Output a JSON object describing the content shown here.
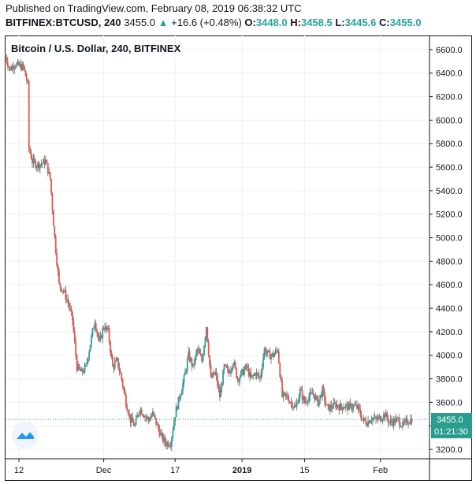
{
  "header": {
    "published": "Published on TradingView.com, February 08, 2019 06:38:32 UTC",
    "symbol": "BITFINEX:BTCUSD, 240",
    "last": "3455.0",
    "change_arrow": "▲",
    "change": "+16.6 (+0.48%)",
    "open_label": "O:",
    "open": "3448.0",
    "high_label": "H:",
    "high": "3458.5",
    "low_label": "L:",
    "low": "3445.6",
    "close_label": "C:",
    "close": "3455.0"
  },
  "price_tag": {
    "price": "3455.0",
    "countdown": "01:21:30"
  },
  "colors": {
    "up": "#26a69a",
    "down": "#ef5350",
    "candle": "#6b6b6b",
    "tag": "#2a9d8f"
  },
  "chart_data": {
    "type": "candlestick",
    "title": "Bitcoin / U.S. Dollar, 240, BITFINEX",
    "xlabel": "",
    "ylabel": "",
    "ylim": [
      3120,
      6700
    ],
    "y_ticks": [
      3200,
      3400,
      3600,
      3800,
      4000,
      4200,
      4400,
      4600,
      4800,
      5000,
      5200,
      5400,
      5600,
      5800,
      6000,
      6200,
      6400,
      6600
    ],
    "x_ticks": [
      {
        "label": "12",
        "date": "2018-11-12"
      },
      {
        "label": "Dec",
        "date": "2018-12-01"
      },
      {
        "label": "17",
        "date": "2018-12-17"
      },
      {
        "label": "2019",
        "date": "2019-01-01"
      },
      {
        "label": "15",
        "date": "2019-01-15"
      },
      {
        "label": "Feb",
        "date": "2019-02-01"
      }
    ],
    "x_range": [
      "2018-11-09",
      "2019-02-12"
    ],
    "last_price": 3455.0,
    "grid": true,
    "close_path": [
      [
        "2018-11-09",
        6540
      ],
      [
        "2018-11-10",
        6430
      ],
      [
        "2018-11-11",
        6480
      ],
      [
        "2018-11-12",
        6460
      ],
      [
        "2018-11-13",
        6450
      ],
      [
        "2018-11-14",
        6300
      ],
      [
        "2018-11-14",
        5800
      ],
      [
        "2018-11-15",
        5650
      ],
      [
        "2018-11-16",
        5620
      ],
      [
        "2018-11-17",
        5630
      ],
      [
        "2018-11-18",
        5650
      ],
      [
        "2018-11-19",
        5500
      ],
      [
        "2018-11-20",
        5000
      ],
      [
        "2018-11-21",
        4600
      ],
      [
        "2018-11-22",
        4550
      ],
      [
        "2018-11-23",
        4450
      ],
      [
        "2018-11-24",
        4300
      ],
      [
        "2018-11-25",
        3900
      ],
      [
        "2018-11-26",
        3850
      ],
      [
        "2018-11-27",
        3900
      ],
      [
        "2018-11-28",
        4100
      ],
      [
        "2018-11-29",
        4300
      ],
      [
        "2018-11-30",
        4100
      ],
      [
        "2018-12-01",
        4250
      ],
      [
        "2018-12-02",
        4200
      ],
      [
        "2018-12-03",
        3900
      ],
      [
        "2018-12-04",
        3950
      ],
      [
        "2018-12-05",
        3800
      ],
      [
        "2018-12-06",
        3600
      ],
      [
        "2018-12-07",
        3450
      ],
      [
        "2018-12-08",
        3400
      ],
      [
        "2018-12-09",
        3550
      ],
      [
        "2018-12-10",
        3500
      ],
      [
        "2018-12-11",
        3450
      ],
      [
        "2018-12-12",
        3500
      ],
      [
        "2018-12-13",
        3400
      ],
      [
        "2018-12-14",
        3300
      ],
      [
        "2018-12-15",
        3250
      ],
      [
        "2018-12-16",
        3260
      ],
      [
        "2018-12-17",
        3500
      ],
      [
        "2018-12-18",
        3650
      ],
      [
        "2018-12-19",
        3800
      ],
      [
        "2018-12-20",
        4000
      ],
      [
        "2018-12-21",
        3900
      ],
      [
        "2018-12-22",
        4050
      ],
      [
        "2018-12-23",
        3950
      ],
      [
        "2018-12-24",
        4250
      ],
      [
        "2018-12-25",
        3800
      ],
      [
        "2018-12-26",
        3850
      ],
      [
        "2018-12-27",
        3650
      ],
      [
        "2018-12-28",
        3900
      ],
      [
        "2018-12-29",
        3850
      ],
      [
        "2018-12-30",
        3950
      ],
      [
        "2018-12-31",
        3800
      ],
      [
        "2019-01-01",
        3850
      ],
      [
        "2019-01-02",
        3900
      ],
      [
        "2019-01-03",
        3800
      ],
      [
        "2019-01-04",
        3850
      ],
      [
        "2019-01-05",
        3800
      ],
      [
        "2019-01-06",
        4050
      ],
      [
        "2019-01-07",
        4000
      ],
      [
        "2019-01-08",
        4000
      ],
      [
        "2019-01-09",
        4050
      ],
      [
        "2019-01-10",
        3650
      ],
      [
        "2019-01-11",
        3650
      ],
      [
        "2019-01-12",
        3600
      ],
      [
        "2019-01-13",
        3550
      ],
      [
        "2019-01-14",
        3700
      ],
      [
        "2019-01-15",
        3600
      ],
      [
        "2019-01-16",
        3650
      ],
      [
        "2019-01-17",
        3670
      ],
      [
        "2019-01-18",
        3600
      ],
      [
        "2019-01-19",
        3700
      ],
      [
        "2019-01-20",
        3550
      ],
      [
        "2019-01-21",
        3560
      ],
      [
        "2019-01-22",
        3580
      ],
      [
        "2019-01-23",
        3560
      ],
      [
        "2019-01-24",
        3570
      ],
      [
        "2019-01-25",
        3560
      ],
      [
        "2019-01-26",
        3570
      ],
      [
        "2019-01-27",
        3550
      ],
      [
        "2019-01-28",
        3450
      ],
      [
        "2019-01-29",
        3430
      ],
      [
        "2019-01-30",
        3470
      ],
      [
        "2019-01-31",
        3450
      ],
      [
        "2019-02-01",
        3470
      ],
      [
        "2019-02-02",
        3500
      ],
      [
        "2019-02-03",
        3430
      ],
      [
        "2019-02-04",
        3440
      ],
      [
        "2019-02-05",
        3450
      ],
      [
        "2019-02-06",
        3400
      ],
      [
        "2019-02-07",
        3440
      ],
      [
        "2019-02-08",
        3455
      ]
    ]
  }
}
